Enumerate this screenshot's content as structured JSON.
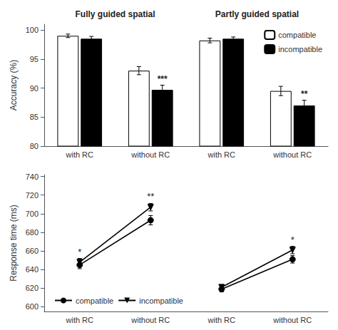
{
  "chart_data": [
    {
      "type": "bar",
      "group_titles": [
        "Fully guided spatial",
        "Partly guided spatial"
      ],
      "y_label": "Accuracy (%)",
      "categories": [
        "with RC",
        "without RC",
        "with RC",
        "without RC"
      ],
      "series": [
        {
          "name": "compatible",
          "color": "white",
          "values": [
            99.0,
            93.0,
            98.2,
            89.5
          ],
          "errors": [
            0.3,
            0.7,
            0.4,
            0.8
          ]
        },
        {
          "name": "incompatible",
          "color": "black",
          "values": [
            98.5,
            89.7,
            98.5,
            87.0
          ],
          "errors": [
            0.4,
            0.8,
            0.3,
            0.9
          ]
        }
      ],
      "ylim": [
        80,
        101
      ],
      "yticks": [
        80,
        85,
        90,
        95,
        100
      ],
      "grid": false,
      "legend": "upper right",
      "annotations": [
        {
          "text": "***",
          "index": 1,
          "series": "incompatible"
        },
        {
          "text": "**",
          "index": 3,
          "series": "incompatible"
        }
      ]
    },
    {
      "type": "line",
      "y_label": "Response time (ms)",
      "categories": [
        "with RC",
        "without RC",
        "with RC",
        "without RC"
      ],
      "series": [
        {
          "name": "compatible",
          "color": "black",
          "marker": "circle",
          "values": [
            645,
            693,
            null,
            null
          ],
          "errors": [
            4,
            5,
            null,
            null
          ]
        },
        {
          "name": "incompatible",
          "color": "black",
          "marker": "triangle_down",
          "values": [
            648,
            707,
            null,
            null
          ],
          "errors": [
            4,
            4,
            null,
            null
          ]
        },
        {
          "name": "compatible",
          "color": "black",
          "marker": "circle",
          "values": [
            null,
            null,
            619,
            651
          ],
          "errors": [
            null,
            null,
            3,
            4
          ]
        },
        {
          "name": "incompatible",
          "color": "black",
          "marker": "triangle_down",
          "values": [
            null,
            null,
            621,
            661
          ],
          "errors": [
            null,
            null,
            3,
            4
          ]
        }
      ],
      "ylim": [
        595,
        742
      ],
      "yticks": [
        600,
        620,
        640,
        660,
        680,
        700,
        720,
        740
      ],
      "grid": false,
      "legend": "lower left",
      "annotations": [
        {
          "text": "*",
          "index": 0
        },
        {
          "text": "**",
          "index": 1
        },
        {
          "text": "*",
          "index": 3
        }
      ]
    }
  ]
}
